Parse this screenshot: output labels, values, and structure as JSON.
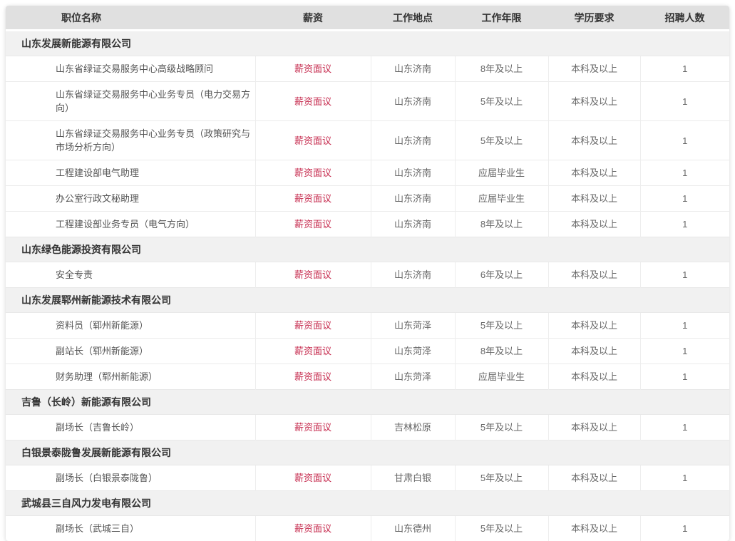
{
  "theme": {
    "header_bg": "#e0e0e0",
    "group_bg": "#f1f1f1",
    "salary_color": "#c62b4e"
  },
  "table": {
    "columns": [
      "职位名称",
      "薪资",
      "工作地点",
      "工作年限",
      "学历要求",
      "招聘人数"
    ],
    "groups": [
      {
        "company": "山东发展新能源有限公司",
        "jobs": [
          {
            "title": "山东省绿证交易服务中心高级战略顾问",
            "salary": "薪资面议",
            "location": "山东济南",
            "experience": "8年及以上",
            "education": "本科及以上",
            "count": "1"
          },
          {
            "title": "山东省绿证交易服务中心业务专员（电力交易方向）",
            "salary": "薪资面议",
            "location": "山东济南",
            "experience": "5年及以上",
            "education": "本科及以上",
            "count": "1"
          },
          {
            "title": "山东省绿证交易服务中心业务专员（政策研究与市场分析方向）",
            "salary": "薪资面议",
            "location": "山东济南",
            "experience": "5年及以上",
            "education": "本科及以上",
            "count": "1"
          },
          {
            "title": "工程建设部电气助理",
            "salary": "薪资面议",
            "location": "山东济南",
            "experience": "应届毕业生",
            "education": "本科及以上",
            "count": "1"
          },
          {
            "title": "办公室行政文秘助理",
            "salary": "薪资面议",
            "location": "山东济南",
            "experience": "应届毕业生",
            "education": "本科及以上",
            "count": "1"
          },
          {
            "title": "工程建设部业务专员（电气方向）",
            "salary": "薪资面议",
            "location": "山东济南",
            "experience": "8年及以上",
            "education": "本科及以上",
            "count": "1"
          }
        ]
      },
      {
        "company": "山东绿色能源投资有限公司",
        "jobs": [
          {
            "title": "安全专责",
            "salary": "薪资面议",
            "location": "山东济南",
            "experience": "6年及以上",
            "education": "本科及以上",
            "count": "1"
          }
        ]
      },
      {
        "company": "山东发展郓州新能源技术有限公司",
        "jobs": [
          {
            "title": "资料员（郓州新能源）",
            "salary": "薪资面议",
            "location": "山东菏泽",
            "experience": "5年及以上",
            "education": "本科及以上",
            "count": "1"
          },
          {
            "title": "副站长（郓州新能源）",
            "salary": "薪资面议",
            "location": "山东菏泽",
            "experience": "8年及以上",
            "education": "本科及以上",
            "count": "1"
          },
          {
            "title": "财务助理（郓州新能源）",
            "salary": "薪资面议",
            "location": "山东菏泽",
            "experience": "应届毕业生",
            "education": "本科及以上",
            "count": "1"
          }
        ]
      },
      {
        "company": "吉鲁（长岭）新能源有限公司",
        "jobs": [
          {
            "title": "副场长（吉鲁长岭）",
            "salary": "薪资面议",
            "location": "吉林松原",
            "experience": "5年及以上",
            "education": "本科及以上",
            "count": "1"
          }
        ]
      },
      {
        "company": "白银景泰陇鲁发展新能源有限公司",
        "jobs": [
          {
            "title": "副场长（白银景泰陇鲁）",
            "salary": "薪资面议",
            "location": "甘肃白银",
            "experience": "5年及以上",
            "education": "本科及以上",
            "count": "1"
          }
        ]
      },
      {
        "company": "武城县三自风力发电有限公司",
        "jobs": [
          {
            "title": "副场长（武城三自）",
            "salary": "薪资面议",
            "location": "山东德州",
            "experience": "5年及以上",
            "education": "本科及以上",
            "count": "1"
          }
        ]
      }
    ]
  }
}
